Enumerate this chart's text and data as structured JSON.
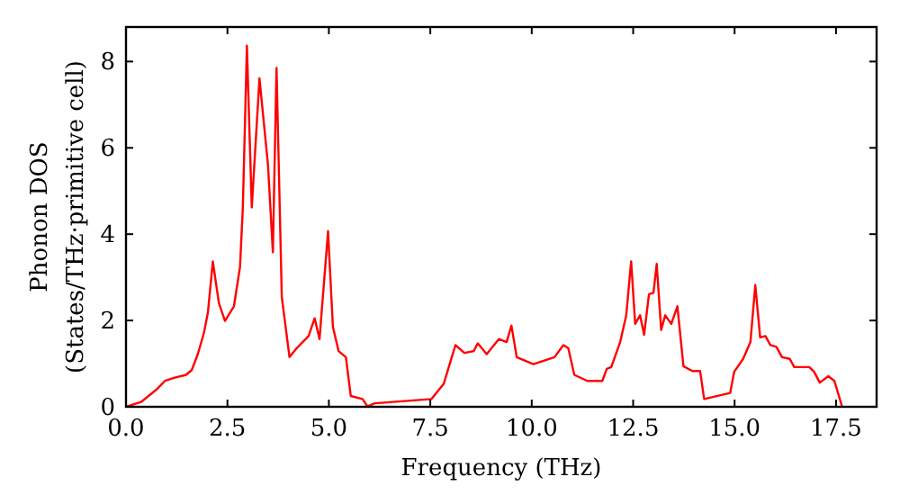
{
  "chart_data": {
    "type": "line",
    "xlabel": "Frequency (THz)",
    "ylabel": "Phonon DOS\n(States/THz·primitive cell)",
    "xlim": [
      0,
      18.5
    ],
    "ylim": [
      0,
      8.8
    ],
    "xticks": [
      {
        "value": 0,
        "label": "0.0"
      },
      {
        "value": 2.5,
        "label": "2.5"
      },
      {
        "value": 5,
        "label": "5.0"
      },
      {
        "value": 7.5,
        "label": "7.5"
      },
      {
        "value": 10,
        "label": "10.0"
      },
      {
        "value": 12.5,
        "label": "12.5"
      },
      {
        "value": 15,
        "label": "15.0"
      },
      {
        "value": 17.5,
        "label": "17.5"
      }
    ],
    "yticks": [
      0,
      2,
      4,
      6,
      8
    ],
    "grid": false,
    "marker": "none",
    "line_style": "solid",
    "series": [
      {
        "color": "#ff0000",
        "x": [
          0,
          0.37,
          0.74,
          0.96,
          1.18,
          1.48,
          1.62,
          1.77,
          1.92,
          2.02,
          2.14,
          2.29,
          2.44,
          2.66,
          2.81,
          2.88,
          2.98,
          3.1,
          3.29,
          3.5,
          3.62,
          3.71,
          3.84,
          4.03,
          4.21,
          4.5,
          4.65,
          4.77,
          4.98,
          5.1,
          5.24,
          5.42,
          5.54,
          5.83,
          5.95,
          6.13,
          7.53,
          7.83,
          8.12,
          8.34,
          8.57,
          8.67,
          8.89,
          9.19,
          9.38,
          9.5,
          9.63,
          10.04,
          10.56,
          10.78,
          10.9,
          11.05,
          11.37,
          11.74,
          11.85,
          11.96,
          12.18,
          12.33,
          12.45,
          12.55,
          12.67,
          12.77,
          12.89,
          13.0,
          13.08,
          13.19,
          13.29,
          13.44,
          13.59,
          13.74,
          13.96,
          14.15,
          14.25,
          14.89,
          14.99,
          15.21,
          15.39,
          15.51,
          15.63,
          15.76,
          15.88,
          16.03,
          16.17,
          16.36,
          16.47,
          16.84,
          16.96,
          17.1,
          17.31,
          17.46,
          17.65
        ],
        "values": [
          0,
          0.11,
          0.39,
          0.6,
          0.67,
          0.74,
          0.85,
          1.22,
          1.71,
          2.19,
          3.37,
          2.4,
          1.99,
          2.33,
          3.24,
          4.62,
          8.37,
          4.62,
          7.61,
          5.6,
          3.58,
          7.85,
          2.54,
          1.15,
          1.36,
          1.64,
          2.05,
          1.57,
          4.07,
          1.85,
          1.29,
          1.15,
          0.25,
          0.18,
          0.01,
          0.08,
          0.18,
          0.53,
          1.43,
          1.25,
          1.29,
          1.47,
          1.22,
          1.57,
          1.5,
          1.88,
          1.15,
          0.99,
          1.15,
          1.43,
          1.36,
          0.74,
          0.6,
          0.6,
          0.88,
          0.92,
          1.5,
          2.12,
          3.37,
          1.92,
          2.12,
          1.67,
          2.61,
          2.64,
          3.31,
          1.78,
          2.12,
          1.92,
          2.33,
          0.94,
          0.83,
          0.83,
          0.18,
          0.32,
          0.81,
          1.11,
          1.5,
          2.82,
          1.61,
          1.64,
          1.43,
          1.39,
          1.15,
          1.11,
          0.92,
          0.92,
          0.81,
          0.56,
          0.71,
          0.6,
          0
        ]
      }
    ]
  }
}
